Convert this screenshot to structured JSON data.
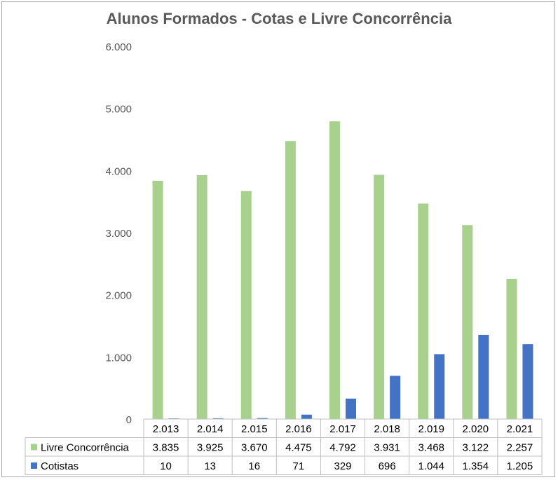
{
  "chart_data": {
    "type": "bar",
    "title": "Alunos Formados - Cotas e Livre Concorrência",
    "categories": [
      "2.013",
      "2.014",
      "2.015",
      "2.016",
      "2.017",
      "2.018",
      "2.019",
      "2.020",
      "2.021"
    ],
    "series": [
      {
        "name": "Livre Concorrência",
        "color": "#a9d18e",
        "values": [
          3835,
          3925,
          3670,
          4475,
          4792,
          3931,
          3468,
          3122,
          2257
        ],
        "labels": [
          "3.835",
          "3.925",
          "3.670",
          "4.475",
          "4.792",
          "3.931",
          "3.468",
          "3.122",
          "2.257"
        ]
      },
      {
        "name": "Cotistas",
        "color": "#4472c4",
        "values": [
          10,
          13,
          16,
          71,
          329,
          696,
          1044,
          1354,
          1205
        ],
        "labels": [
          "10",
          "13",
          "16",
          "71",
          "329",
          "696",
          "1.044",
          "1.354",
          "1.205"
        ]
      }
    ],
    "ylim": [
      0,
      6000
    ],
    "yticks": [
      0,
      1000,
      2000,
      3000,
      4000,
      5000,
      6000
    ],
    "ytick_labels": [
      "0",
      "1.000",
      "2.000",
      "3.000",
      "4.000",
      "5.000",
      "6.000"
    ],
    "legend": "data-table",
    "grid": false
  }
}
